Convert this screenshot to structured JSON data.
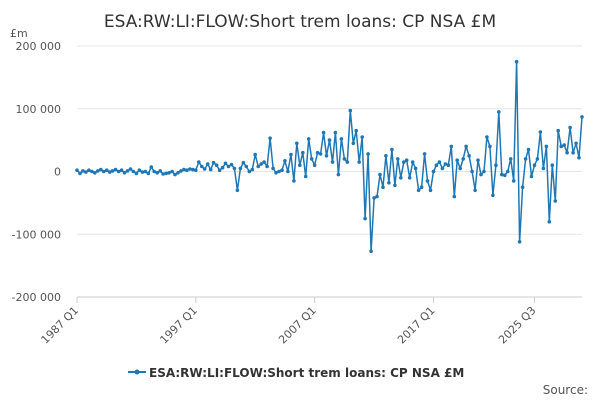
{
  "chart_data": {
    "type": "line",
    "title": "ESA:RW:LI:FLOW:Short trem loans: CP NSA £M",
    "unit_label": "£m",
    "xlabel": "",
    "ylabel": "",
    "ylim": [
      -200000,
      200000
    ],
    "y_ticks": [
      200000,
      100000,
      0,
      -100000,
      -200000
    ],
    "y_tick_labels": [
      "200 000",
      "100 000",
      "0",
      "-100 000",
      "-200 000"
    ],
    "x_ticks": [
      {
        "label": "1987 Q1",
        "x": 1987.0
      },
      {
        "label": "1997 Q1",
        "x": 1997.0
      },
      {
        "label": "2007 Q1",
        "x": 2007.0
      },
      {
        "label": "2017 Q1",
        "x": 2017.0
      },
      {
        "label": "2025 Q3",
        "x": 2025.5
      }
    ],
    "x_start": 1987.0,
    "x_step": 0.25,
    "grid": "horizontal",
    "legend_position": "bottom",
    "color": "#1f77b4",
    "series": [
      {
        "name": "ESA:RW:LI:FLOW:Short trem loans: CP NSA £M",
        "values": [
          2000,
          -3000,
          1000,
          -1000,
          2000,
          0,
          -2000,
          1000,
          3000,
          0,
          2000,
          -1000,
          1000,
          3000,
          0,
          2000,
          -2000,
          1000,
          4000,
          0,
          -3000,
          2000,
          -1000,
          0,
          -3000,
          7000,
          0,
          -2000,
          1000,
          -4000,
          -3000,
          -2000,
          0,
          -5000,
          -2000,
          1000,
          3000,
          2000,
          4000,
          3000,
          2000,
          15000,
          8000,
          4000,
          12000,
          3000,
          14000,
          10000,
          2000,
          6000,
          13000,
          8000,
          11000,
          5000,
          -30000,
          5000,
          14000,
          8000,
          0,
          3000,
          27000,
          8000,
          12000,
          15000,
          8000,
          53000,
          5000,
          -2000,
          0,
          2000,
          17000,
          0,
          27000,
          -15000,
          45000,
          10000,
          30000,
          -8000,
          52000,
          20000,
          10000,
          30000,
          28000,
          62000,
          25000,
          50000,
          15000,
          62000,
          -5000,
          52000,
          20000,
          15000,
          97000,
          45000,
          65000,
          15000,
          55000,
          -75000,
          28000,
          -127000,
          -42000,
          -40000,
          -5000,
          -25000,
          25000,
          -18000,
          35000,
          -22000,
          20000,
          -10000,
          15000,
          18000,
          -10000,
          15000,
          5000,
          -30000,
          -25000,
          28000,
          -15000,
          -30000,
          0,
          10000,
          15000,
          5000,
          12000,
          10000,
          40000,
          -40000,
          18000,
          5000,
          20000,
          40000,
          25000,
          0,
          -30000,
          18000,
          -5000,
          0,
          55000,
          40000,
          -38000,
          10000,
          95000,
          -5000,
          -6000,
          0,
          20000,
          -15000,
          175000,
          -112000,
          -25000,
          20000,
          35000,
          -8000,
          10000,
          20000,
          63000,
          5000,
          40000,
          -80000,
          10000,
          -47000,
          65000,
          40000,
          42000,
          30000,
          70000,
          30000,
          45000,
          22000,
          87000
        ]
      }
    ]
  },
  "legend": {
    "label": "ESA:RW:LI:FLOW:Short trem loans: CP NSA £M"
  },
  "footer": {
    "source_label": "Source:"
  }
}
